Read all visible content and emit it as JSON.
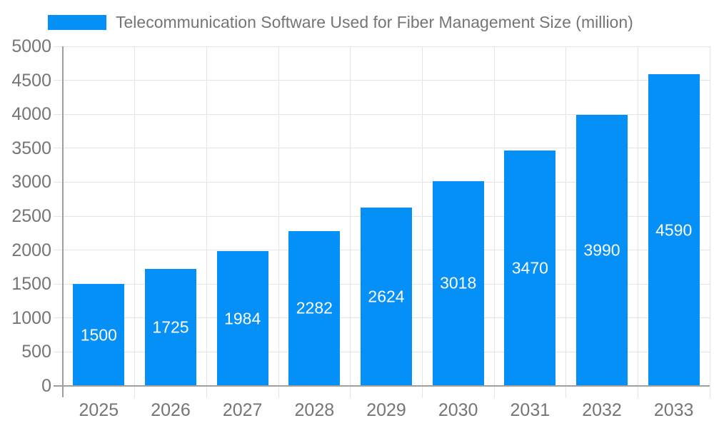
{
  "legend": {
    "label": "Telecommunication Software Used for Fiber Management Size (million)"
  },
  "chart_data": {
    "type": "bar",
    "title": "Telecommunication Software Used for Fiber Management Size (million)",
    "categories": [
      "2025",
      "2026",
      "2027",
      "2028",
      "2029",
      "2030",
      "2031",
      "2032",
      "2033"
    ],
    "values": [
      1500,
      1725,
      1984,
      2282,
      2624,
      3018,
      3470,
      3990,
      4590
    ],
    "xlabel": "",
    "ylabel": "",
    "ylim": [
      0,
      5000
    ],
    "ytick_step": 500,
    "grid": true,
    "legend_position": "top",
    "colors": {
      "bar": "#0590f8",
      "value_label": "#ffffff",
      "tick_label": "#757575",
      "legend_text": "#757575",
      "gridline": "#e4e4e4",
      "axis_line": "#9e9e9e"
    }
  }
}
